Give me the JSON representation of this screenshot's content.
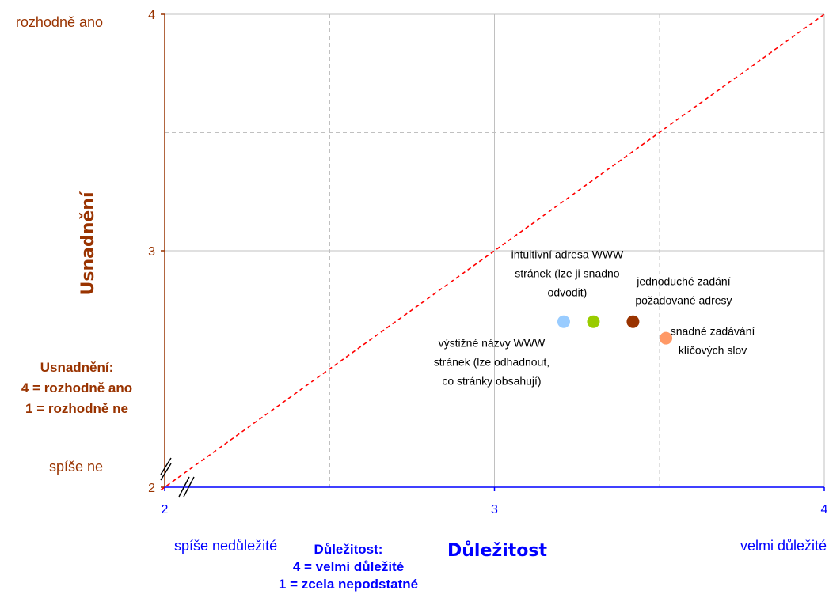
{
  "chart_data": {
    "type": "scatter",
    "xlabel": "Důležitost",
    "ylabel": "Usnadnění",
    "xlim": [
      2,
      4
    ],
    "ylim": [
      2,
      4
    ],
    "xticks": [
      2,
      3,
      4
    ],
    "yticks": [
      2,
      3,
      4
    ],
    "grid": {
      "major_step": 1,
      "minor_step": 0.5
    },
    "axis_break": true,
    "reference_line": {
      "from": [
        2,
        2
      ],
      "to": [
        4,
        4
      ],
      "color": "#ff0000"
    },
    "points": [
      {
        "x": 3.21,
        "y": 2.7,
        "color": "#99ccff",
        "label": [
          "výstižné názvy WWW",
          "stránek (lze odhadnout,",
          "co stránky obsahují)"
        ]
      },
      {
        "x": 3.3,
        "y": 2.7,
        "color": "#99cc00",
        "label": [
          "intuitivní adresa WWW",
          "stránek (lze ji snadno",
          "odvodit)"
        ]
      },
      {
        "x": 3.42,
        "y": 2.7,
        "color": "#993300",
        "label": [
          "jednoduché zadání",
          "požadované adresy"
        ]
      },
      {
        "x": 3.52,
        "y": 2.63,
        "color": "#ff9966",
        "label": [
          "snadné zadávání",
          "klíčových slov"
        ]
      }
    ],
    "annotations": {
      "y_high": "rozhodně ano",
      "y_low": "spíše ne",
      "x_low": "spíše nedůležité",
      "x_high": "velmi důležité",
      "y_scale_note": [
        "Usnadnění:",
        "4 = rozhodně ano",
        "1 = rozhodně ne"
      ],
      "x_scale_note": [
        "Důležitost:",
        "4 = velmi důležité",
        "1 = zcela nepodstatné"
      ]
    },
    "colors": {
      "x_axis": "#0000ff",
      "y_axis": "#993300",
      "grid": "#c0c0c0"
    }
  }
}
